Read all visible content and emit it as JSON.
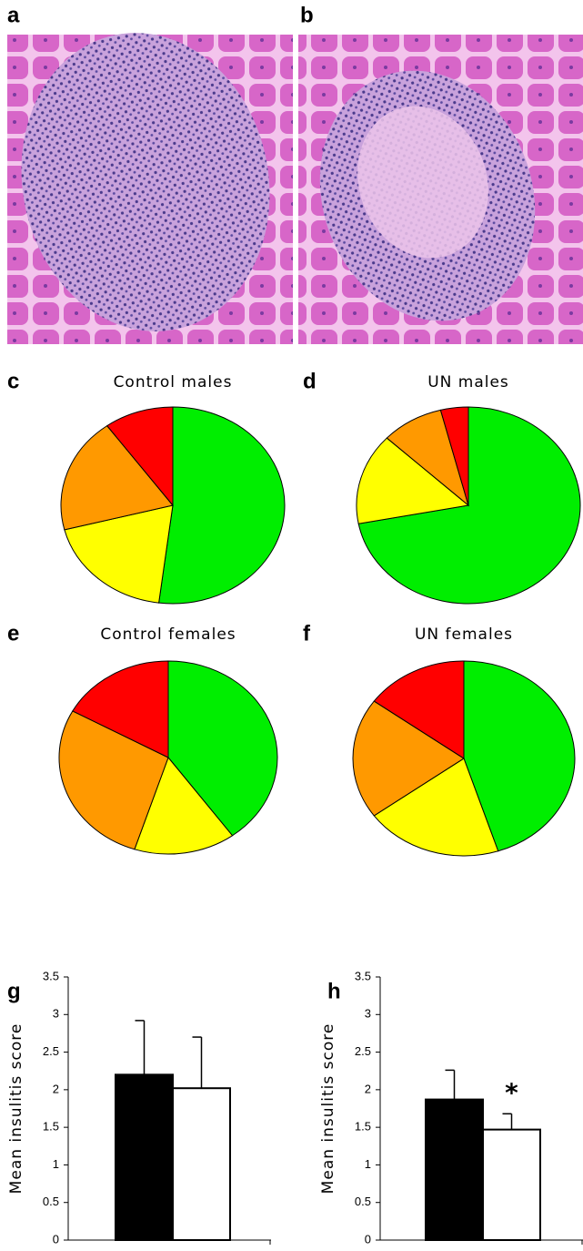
{
  "panels": [
    {
      "label": "a"
    },
    {
      "label": "b"
    }
  ],
  "chart_data": [
    {
      "type": "pie",
      "panel_label": "c",
      "title": "Control males",
      "values": [
        52,
        19,
        19,
        10
      ],
      "colors": [
        "#00ee00",
        "#ffff00",
        "#ff9900",
        "#ff0000"
      ]
    },
    {
      "type": "pie",
      "panel_label": "d",
      "title": "UN males",
      "values": [
        72,
        15,
        9,
        4
      ],
      "colors": [
        "#00ee00",
        "#ffff00",
        "#ff9900",
        "#ff0000"
      ]
    },
    {
      "type": "pie",
      "panel_label": "e",
      "title": "Control females",
      "values": [
        40,
        15,
        28,
        17
      ],
      "colors": [
        "#00ee00",
        "#ffff00",
        "#ff9900",
        "#ff0000"
      ]
    },
    {
      "type": "pie",
      "panel_label": "f",
      "title": "UN females",
      "values": [
        45,
        20,
        20,
        15
      ],
      "colors": [
        "#00ee00",
        "#ffff00",
        "#ff9900",
        "#ff0000"
      ]
    },
    {
      "type": "bar",
      "panel_label": "g",
      "ylabel": "Mean insulitis score",
      "values": [
        2.2,
        2.02
      ],
      "errors": [
        0.72,
        0.68
      ],
      "colors": [
        "#000000",
        "#ffffff"
      ],
      "ylim": [
        0,
        3.5
      ],
      "yticks": [
        0,
        0.5,
        1,
        1.5,
        2,
        2.5,
        3,
        3.5
      ]
    },
    {
      "type": "bar",
      "panel_label": "h",
      "ylabel": "Mean insulitis score",
      "values": [
        1.87,
        1.47
      ],
      "errors": [
        0.39,
        0.21
      ],
      "colors": [
        "#000000",
        "#ffffff"
      ],
      "ylim": [
        0,
        3.5
      ],
      "yticks": [
        0,
        0.5,
        1,
        1.5,
        2,
        2.5,
        3,
        3.5
      ],
      "annotation": {
        "text": "*",
        "bar": 1
      }
    }
  ]
}
